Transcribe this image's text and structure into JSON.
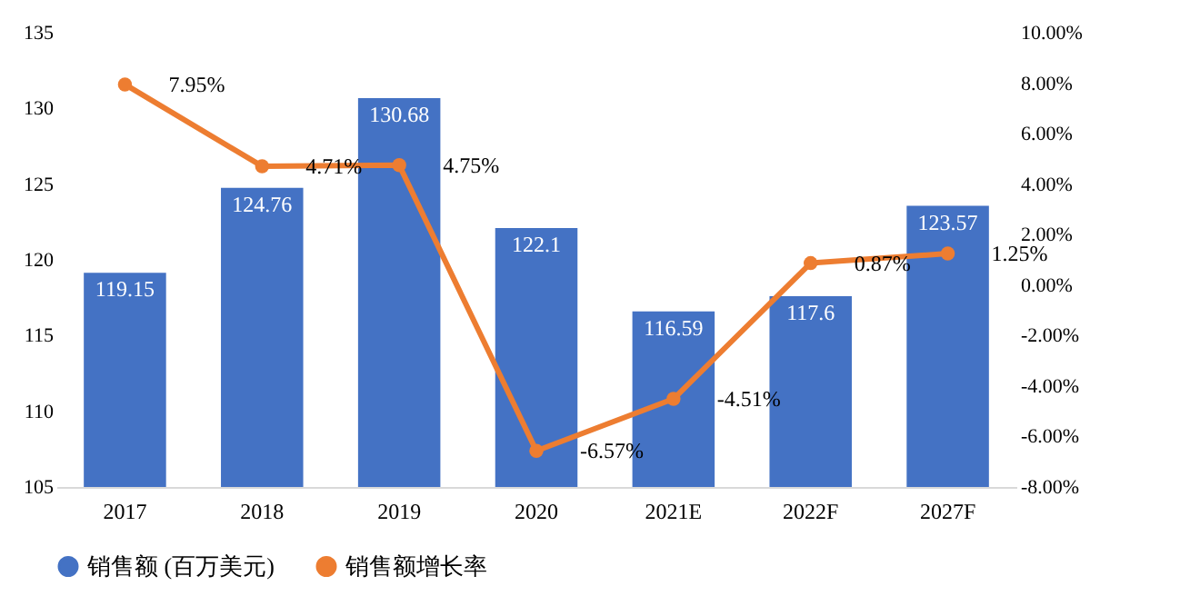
{
  "chart_data": {
    "type": "bar",
    "categories": [
      "2017",
      "2018",
      "2019",
      "2020",
      "2021E",
      "2022F",
      "2027F"
    ],
    "series": [
      {
        "name": "销售额 (百万美元)",
        "color": "#4472c4",
        "values": [
          119.15,
          124.76,
          130.68,
          122.1,
          116.59,
          117.6,
          123.57
        ],
        "value_labels": [
          "119.15",
          "124.76",
          "130.68",
          "122.1",
          "116.59",
          "117.6",
          "123.57"
        ]
      },
      {
        "name": "销售额增长率",
        "type": "line",
        "axis": "y2",
        "color": "#ed7d31",
        "values": [
          7.95,
          4.71,
          4.75,
          -6.57,
          -4.51,
          0.87,
          1.25
        ],
        "value_labels": [
          "7.95%",
          "4.71%",
          "4.75%",
          "-6.57%",
          "-4.51%",
          "0.87%",
          "1.25%"
        ]
      }
    ],
    "ylim": [
      105,
      135
    ],
    "yticks": [
      105,
      110,
      115,
      120,
      125,
      130,
      135
    ],
    "y2lim": [
      -8,
      10
    ],
    "y2ticks": [
      {
        "value": -8,
        "label": "-8.00%"
      },
      {
        "value": -6,
        "label": "-6.00%"
      },
      {
        "value": -4,
        "label": "-4.00%"
      },
      {
        "value": -2,
        "label": "-2.00%"
      },
      {
        "value": 0,
        "label": "0.00%"
      },
      {
        "value": 2,
        "label": "2.00%"
      },
      {
        "value": 4,
        "label": "4.00%"
      },
      {
        "value": 6,
        "label": "6.00%"
      },
      {
        "value": 8,
        "label": "8.00%"
      },
      {
        "value": 10,
        "label": "10.00%"
      }
    ],
    "grid": false,
    "legend": "bottom",
    "marker": "circle",
    "line_style": "solid"
  }
}
